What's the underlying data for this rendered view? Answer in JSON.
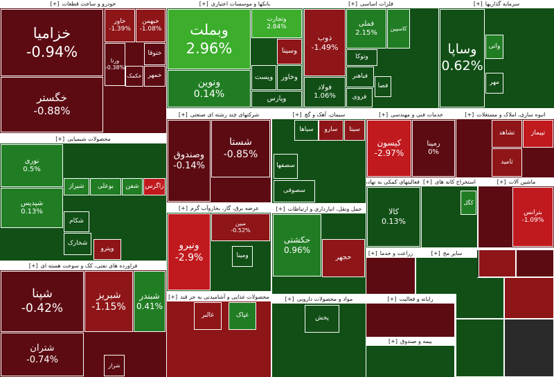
{
  "expand": "[+]",
  "sectors": [
    {
      "title": "خودرو و ساخت قطعات",
      "tiles": [
        {
          "name": "خزامیا",
          "change": "-0.94%"
        },
        {
          "name": "خگستر",
          "change": "-0.88%"
        },
        {
          "name": "خاور",
          "change": "-1.39%"
        },
        {
          "name": "خبهمن",
          "change": "-1.08%"
        },
        {
          "name": "ورنا",
          "change": "-0.38%"
        },
        {
          "name": "ختوقا"
        },
        {
          "name": "خکمک"
        },
        {
          "name": "خمهر"
        }
      ]
    },
    {
      "title": "بانکها و موسسات اعتباری",
      "tiles": [
        {
          "name": "وبملت",
          "change": "2.96%"
        },
        {
          "name": "ونوین",
          "change": "0.14%"
        },
        {
          "name": "وتجارت",
          "change": "2.84%"
        },
        {
          "name": "وسینا"
        },
        {
          "name": "ویست"
        },
        {
          "name": "وخاور"
        },
        {
          "name": "وپارس"
        }
      ]
    },
    {
      "title": "فلزات اساسی",
      "tiles": [
        {
          "name": "ذوب",
          "change": "-1.49%"
        },
        {
          "name": "فملی",
          "change": "2.15%"
        },
        {
          "name": "کاسپین"
        },
        {
          "name": "فولاد",
          "change": "1.06%"
        },
        {
          "name": "وتوکا"
        },
        {
          "name": "فباهنر"
        },
        {
          "name": "فروی"
        },
        {
          "name": "فصا"
        }
      ]
    },
    {
      "title": "سرمایه گذاریها",
      "tiles": [
        {
          "name": "وساپا",
          "change": "0.62%"
        },
        {
          "name": "واتی"
        },
        {
          "name": "مهر"
        }
      ]
    },
    {
      "title": "شرکتهای چند رشته ای صنعتی",
      "tiles": [
        {
          "name": "وصندوق",
          "change": "-0.14%"
        },
        {
          "name": "شستا",
          "change": "-0.85%"
        }
      ]
    },
    {
      "title": "سیمان، آهک و گچ",
      "tiles": [
        {
          "name": "سیتا"
        },
        {
          "name": "سارو"
        },
        {
          "name": "سیاها"
        },
        {
          "name": "سصفها"
        },
        {
          "name": "سصوفی"
        }
      ]
    },
    {
      "title": "خدمات فنی و مهندسی",
      "tiles": [
        {
          "name": "کیسون",
          "change": "-2.97%"
        },
        {
          "name": "رمپنا",
          "change": "0%"
        }
      ]
    },
    {
      "title": "انبوه سازی، املاک و مستغلات",
      "tiles": [
        {
          "name": "تپیماز"
        },
        {
          "name": "تشاهد"
        },
        {
          "name": "ثامید"
        }
      ]
    },
    {
      "title": "محصولات شیمیایی",
      "tiles": [
        {
          "name": "نوری",
          "change": "0.5%"
        },
        {
          "name": "شپدیس",
          "change": "0.13%"
        },
        {
          "name": "شیراز"
        },
        {
          "name": "بوعلی"
        },
        {
          "name": "شفن"
        },
        {
          "name": "زاگرس"
        },
        {
          "name": "شکام"
        },
        {
          "name": "شخارک"
        },
        {
          "name": "وپترو"
        }
      ]
    },
    {
      "title": "فراورده های نفتی، کک و سوخت هسته ای",
      "tiles": [
        {
          "name": "شپنا",
          "change": "-0.42%"
        },
        {
          "name": "شبریز",
          "change": "-1.15%"
        },
        {
          "name": "شبندر",
          "change": "0.41%"
        },
        {
          "name": "شتران",
          "change": "-0.74%"
        },
        {
          "name": "شراز"
        }
      ]
    },
    {
      "title": "عرضه برق، گاز، بخاروآب گرم",
      "tiles": [
        {
          "name": "ونیرو",
          "change": "-2.9%"
        },
        {
          "name": "مبین",
          "change": "-0.52%"
        },
        {
          "name": "ومینا"
        }
      ]
    },
    {
      "title": "حمل ونقل، انبارداری و ارتباطات",
      "tiles": [
        {
          "name": "حکشتی",
          "change": "0.96%"
        },
        {
          "name": "حجهر"
        }
      ]
    },
    {
      "title": "محصولات غذایی و آشامیدنی به جز قند",
      "tiles": [
        {
          "name": "غالبر"
        },
        {
          "name": "غپاک"
        }
      ]
    },
    {
      "title": "مواد و محصولات دارویی",
      "tiles": [
        {
          "name": "پخش"
        }
      ]
    },
    {
      "title": "فعالیتهای کمکی به نهادهای",
      "tiles": [
        {
          "name": "کالا",
          "change": "0.13%"
        }
      ]
    },
    {
      "title": "استخراج کانه های",
      "tiles": [
        {
          "name": "کگل"
        }
      ]
    },
    {
      "title": "ماشین آلات",
      "tiles": [
        {
          "name": "بترانس",
          "change": "-1.09%"
        }
      ]
    },
    {
      "title": "زراعت و خدما",
      "tiles": []
    },
    {
      "title": "سایر مج",
      "tiles": []
    },
    {
      "title": "رایانه و فعالیت",
      "tiles": []
    },
    {
      "title": "بیمه و صندوق",
      "tiles": []
    }
  ]
}
